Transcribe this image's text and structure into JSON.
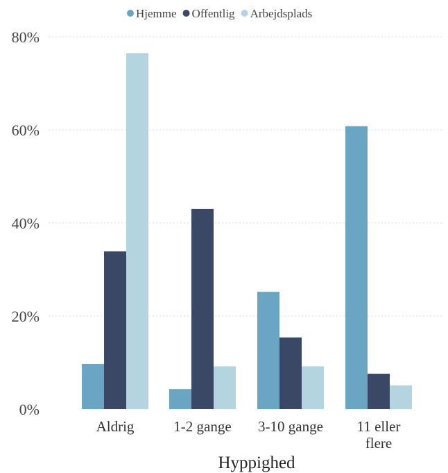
{
  "chart_data": {
    "type": "bar",
    "categories": [
      [
        "Aldrig"
      ],
      [
        "1-2 gange"
      ],
      [
        "3-10 gange"
      ],
      [
        "11 eller",
        "flere"
      ]
    ],
    "series": [
      {
        "name": "Hjemme",
        "color": "#6aa5c3",
        "values": [
          9.7,
          4.3,
          25.2,
          60.8
        ]
      },
      {
        "name": "Offentlig",
        "color": "#3a4866",
        "values": [
          33.9,
          43.0,
          15.4,
          7.6
        ]
      },
      {
        "name": "Arbejdsplads",
        "color": "#b4d5e0",
        "values": [
          76.5,
          9.2,
          9.2,
          5.1
        ]
      }
    ],
    "xlabel": "Hyppighed",
    "ylabel": "",
    "ylim": [
      0,
      80
    ],
    "yticks": [
      0,
      20,
      40,
      60,
      80
    ],
    "ytick_labels": [
      "0%",
      "20%",
      "40%",
      "60%",
      "80%"
    ],
    "grid": true,
    "legend_position": "top"
  }
}
